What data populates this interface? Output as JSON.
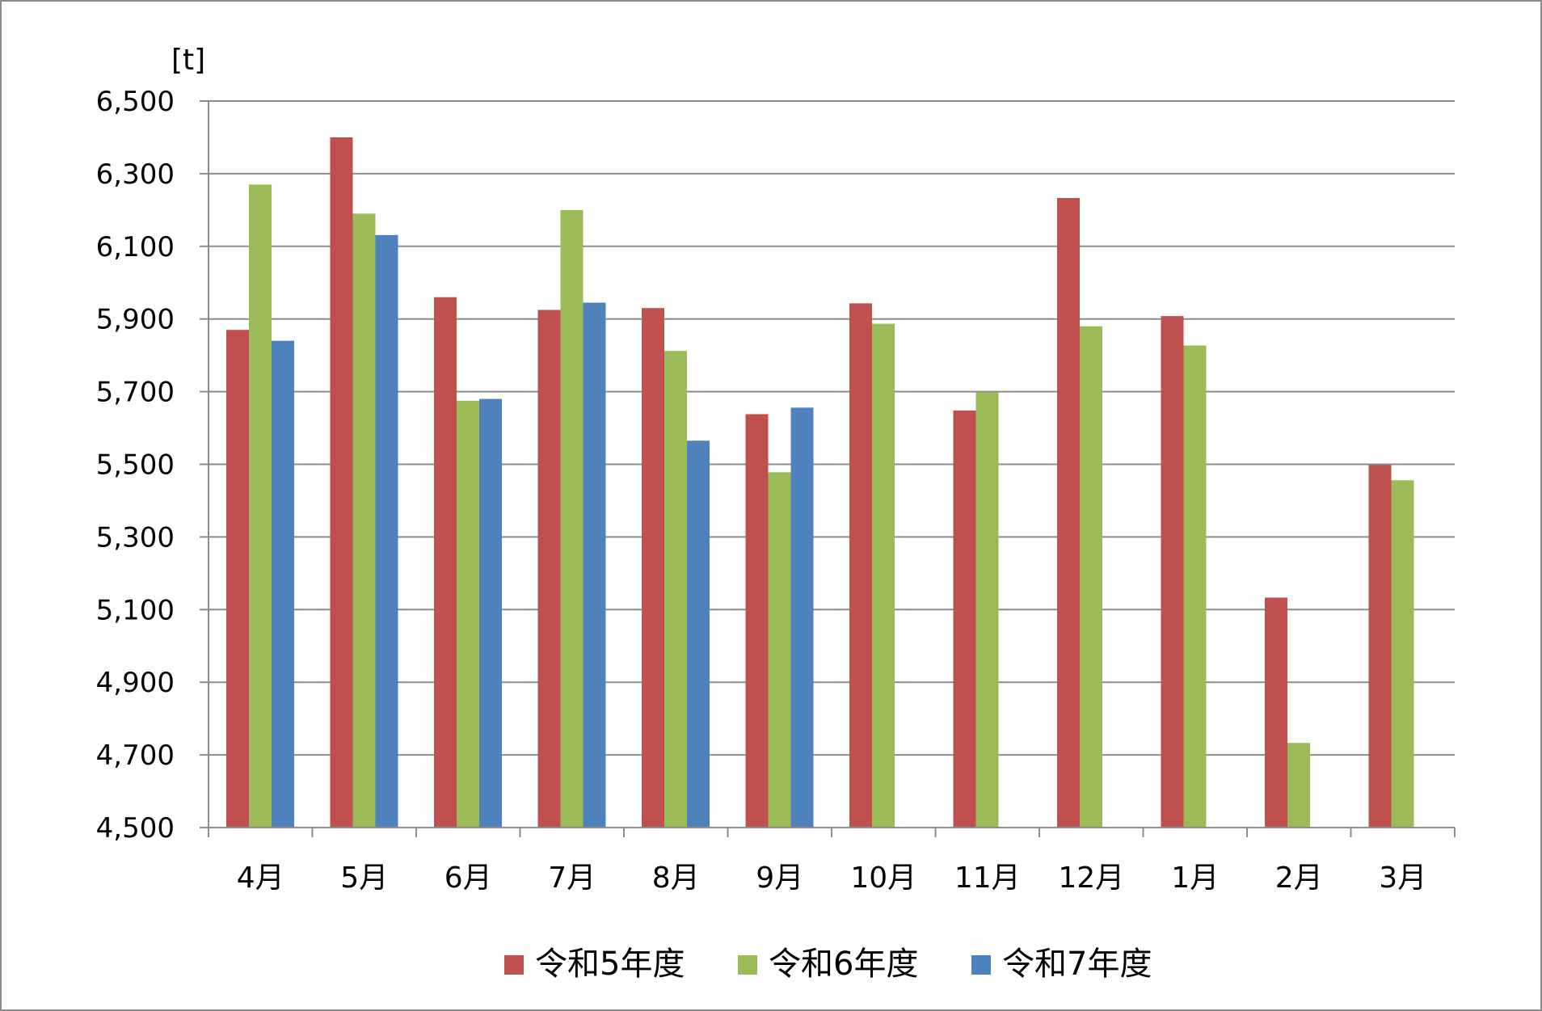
{
  "chart_data": {
    "type": "bar",
    "unit_label": "[t]",
    "categories": [
      "4月",
      "5月",
      "6月",
      "7月",
      "8月",
      "9月",
      "10月",
      "11月",
      "12月",
      "1月",
      "2月",
      "3月"
    ],
    "series": [
      {
        "name": "令和5年度",
        "color": "#c0504d",
        "values": [
          5870,
          6400,
          5960,
          5925,
          5930,
          5638,
          5943,
          5648,
          6233,
          5908,
          5133,
          5498
        ]
      },
      {
        "name": "令和6年度",
        "color": "#9bbb59",
        "values": [
          6270,
          6190,
          5675,
          6200,
          5812,
          5478,
          5887,
          5698,
          5880,
          5827,
          4733,
          5456
        ]
      },
      {
        "name": "令和7年度",
        "color": "#4f81bd",
        "values": [
          5840,
          6131,
          5680,
          5945,
          5565,
          5656,
          null,
          null,
          null,
          null,
          null,
          null
        ]
      }
    ],
    "ylim": [
      4500,
      6500
    ],
    "yticks": [
      4500,
      4700,
      4900,
      5100,
      5300,
      5500,
      5700,
      5900,
      6100,
      6300,
      6500
    ],
    "ytick_labels": [
      "4,500",
      "4,700",
      "4,900",
      "5,100",
      "5,300",
      "5,500",
      "5,700",
      "5,900",
      "6,100",
      "6,300",
      "6,500"
    ],
    "grid": true,
    "legend_position": "bottom"
  }
}
